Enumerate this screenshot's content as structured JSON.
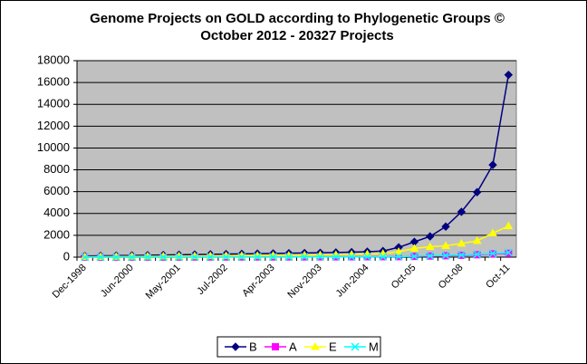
{
  "chart_data": {
    "type": "line",
    "title": "Genome Projects on GOLD according to Phylogenetic Groups ©",
    "subtitle": "October 2012 - 20327 Projects",
    "categories": [
      "Dec-1998",
      null,
      null,
      "Jun-2000",
      null,
      null,
      "May-2001",
      null,
      null,
      "Jul-2002",
      null,
      null,
      "Apr-2003",
      null,
      null,
      "Nov-2003",
      null,
      null,
      "Jun-2004",
      null,
      null,
      "Oct-05",
      null,
      null,
      "Oct-08",
      null,
      null,
      "Oct-11"
    ],
    "series": [
      {
        "name": "B",
        "color": "#000080",
        "marker": "diamond",
        "values": [
          100,
          120,
          140,
          160,
          180,
          200,
          220,
          240,
          260,
          280,
          300,
          320,
          340,
          360,
          380,
          400,
          430,
          460,
          500,
          560,
          900,
          1400,
          1900,
          2800,
          4150,
          5950,
          8450,
          16700
        ]
      },
      {
        "name": "A",
        "color": "#FF00FF",
        "marker": "square",
        "values": [
          10,
          10,
          10,
          10,
          10,
          10,
          10,
          15,
          15,
          15,
          20,
          20,
          20,
          25,
          25,
          30,
          30,
          35,
          40,
          45,
          50,
          70,
          100,
          130,
          170,
          220,
          300,
          350
        ]
      },
      {
        "name": "E",
        "color": "#FFFF00",
        "marker": "triangle",
        "values": [
          30,
          40,
          50,
          60,
          70,
          80,
          90,
          100,
          110,
          120,
          130,
          140,
          150,
          160,
          180,
          200,
          220,
          250,
          280,
          320,
          500,
          800,
          950,
          1050,
          1250,
          1500,
          2200,
          2850
        ]
      },
      {
        "name": "M",
        "color": "#00FFFF",
        "marker": "x",
        "values": [
          5,
          5,
          5,
          5,
          5,
          5,
          5,
          10,
          10,
          10,
          10,
          15,
          15,
          15,
          20,
          20,
          25,
          25,
          30,
          35,
          50,
          80,
          120,
          160,
          200,
          260,
          330,
          420
        ]
      }
    ],
    "ylim": [
      0,
      18000
    ],
    "yticks": [
      0,
      2000,
      4000,
      6000,
      8000,
      10000,
      12000,
      14000,
      16000,
      18000
    ],
    "grid": true,
    "legend": "bottom",
    "plot_background": "#C0C0C0"
  }
}
